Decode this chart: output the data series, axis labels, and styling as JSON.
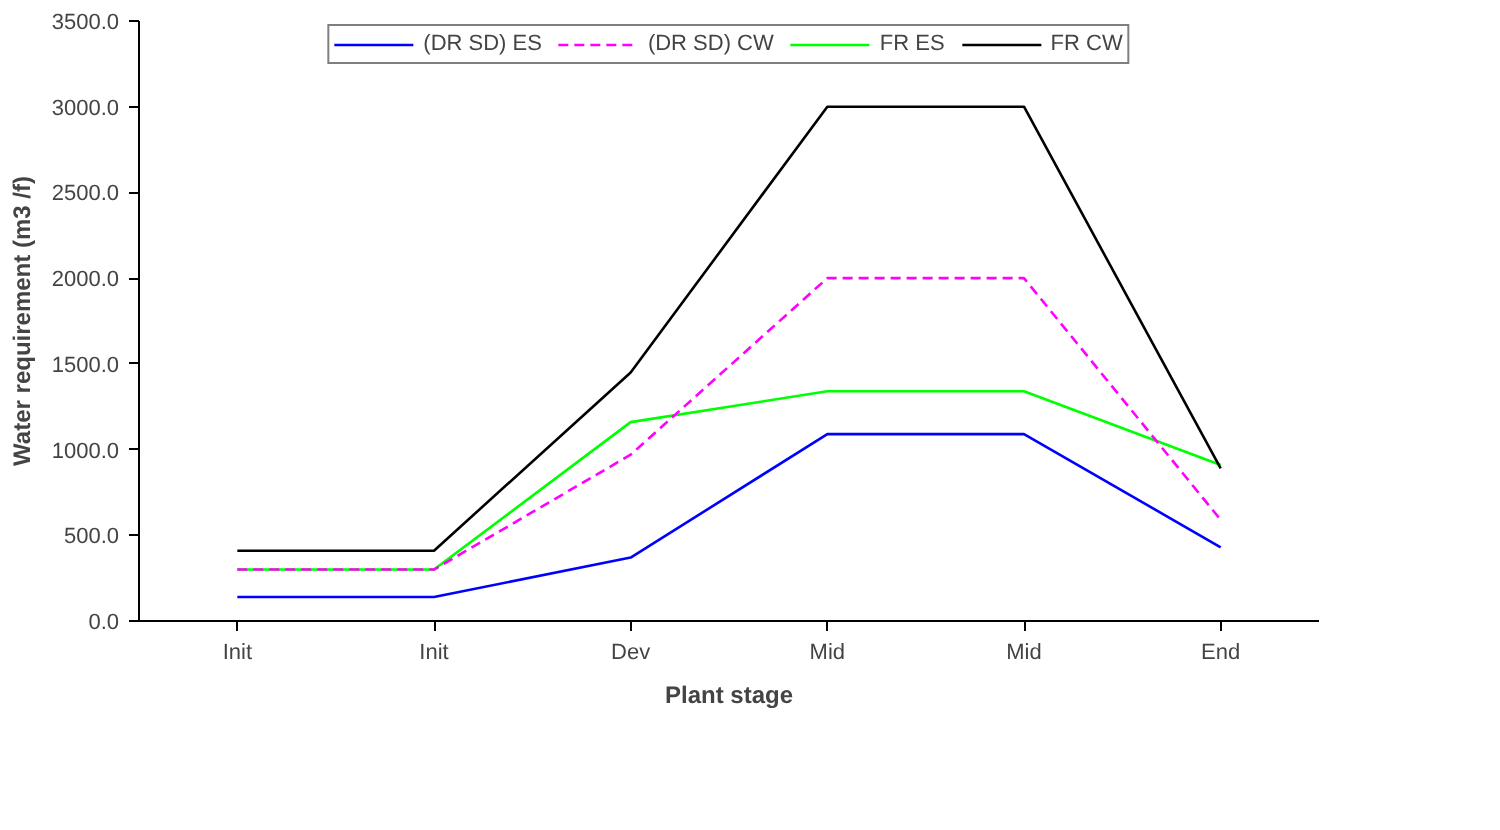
{
  "chart_data": {
    "type": "line",
    "xlabel": "Plant stage",
    "ylabel": "Water requirement (m3 /f)",
    "categories": [
      "Init",
      "Init",
      "Dev",
      "Mid",
      "Mid",
      "End"
    ],
    "series": [
      {
        "name": "(DR SD) ES",
        "color": "#0000ff",
        "values": [
          140,
          140,
          370,
          1090,
          1090,
          430
        ]
      },
      {
        "name": "(DR SD) CW",
        "color": "#ff00ff",
        "values": [
          300,
          300,
          970,
          2000,
          2000,
          590
        ],
        "line_style": "dashed"
      },
      {
        "name": "FR ES",
        "color": "#00ff00",
        "values": [
          300,
          300,
          1160,
          1340,
          1340,
          910
        ]
      },
      {
        "name": "FR CW",
        "color": "#000000",
        "values": [
          410,
          410,
          1450,
          3000,
          3000,
          890
        ]
      }
    ],
    "ylim": [
      0,
      3500
    ],
    "yticks": [
      {
        "value": 0,
        "label": "0.0"
      },
      {
        "value": 500,
        "label": "500.0"
      },
      {
        "value": 1000,
        "label": "1000.0"
      },
      {
        "value": 1500,
        "label": "1500.0"
      },
      {
        "value": 2000,
        "label": "2000.0"
      },
      {
        "value": 2500,
        "label": "2500.0"
      },
      {
        "value": 3000,
        "label": "3000.0"
      },
      {
        "value": 3500,
        "label": "3500.0"
      }
    ],
    "grid": false,
    "legend": "top",
    "marker": "none"
  }
}
